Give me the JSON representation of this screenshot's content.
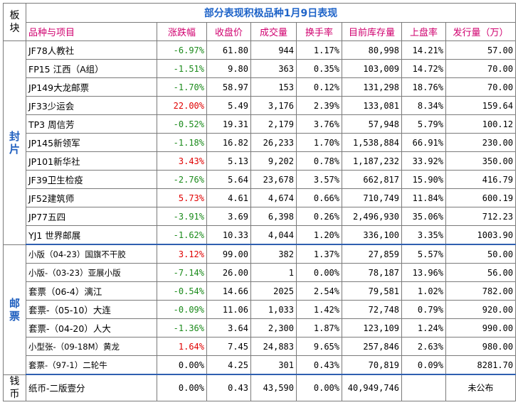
{
  "title": "部分表现积极品种1月9日表现",
  "corner_label": "板块",
  "columns": [
    "品种与项目",
    "涨跌幅",
    "收盘价",
    "成交量",
    "换手率",
    "目前库存量",
    "上盘率",
    "发行量（万）"
  ],
  "sections": [
    {
      "label": "封片",
      "rows": [
        {
          "name": "JF78人教社",
          "change": "-6.97%",
          "dir": "neg",
          "close": "61.80",
          "volume": "944",
          "turnover": "1.17%",
          "stock": "80,998",
          "up_rate": "14.21%",
          "issue": "57.00"
        },
        {
          "name": "FP15 江西（A组）",
          "change": "-1.51%",
          "dir": "neg",
          "close": "9.80",
          "volume": "363",
          "turnover": "0.35%",
          "stock": "103,009",
          "up_rate": "14.72%",
          "issue": "70.00"
        },
        {
          "name": "JP149大龙邮票",
          "change": "-1.70%",
          "dir": "neg",
          "close": "58.97",
          "volume": "153",
          "turnover": "0.12%",
          "stock": "131,298",
          "up_rate": "18.76%",
          "issue": "70.00"
        },
        {
          "name": "JF33少运会",
          "change": "22.00%",
          "dir": "pos",
          "close": "5.49",
          "volume": "3,176",
          "turnover": "2.39%",
          "stock": "133,081",
          "up_rate": "8.34%",
          "issue": "159.64"
        },
        {
          "name": "TP3 周信芳",
          "change": "-0.52%",
          "dir": "neg",
          "close": "19.31",
          "volume": "2,179",
          "turnover": "3.76%",
          "stock": "57,948",
          "up_rate": "5.79%",
          "issue": "100.12"
        },
        {
          "name": "JP145新领军",
          "change": "-1.18%",
          "dir": "neg",
          "close": "16.82",
          "volume": "26,233",
          "turnover": "1.70%",
          "stock": "1,538,884",
          "up_rate": "66.91%",
          "issue": "230.00"
        },
        {
          "name": "JP101新华社",
          "change": "3.43%",
          "dir": "pos",
          "close": "5.13",
          "volume": "9,202",
          "turnover": "0.78%",
          "stock": "1,187,232",
          "up_rate": "33.92%",
          "issue": "350.00"
        },
        {
          "name": "JF39卫生检疫",
          "change": "-2.76%",
          "dir": "neg",
          "close": "5.64",
          "volume": "23,678",
          "turnover": "3.57%",
          "stock": "662,817",
          "up_rate": "15.90%",
          "issue": "416.79"
        },
        {
          "name": "JF52建筑师",
          "change": "5.73%",
          "dir": "pos",
          "close": "4.61",
          "volume": "4,674",
          "turnover": "0.66%",
          "stock": "710,749",
          "up_rate": "11.84%",
          "issue": "600.19"
        },
        {
          "name": "JP77五四",
          "change": "-3.91%",
          "dir": "neg",
          "close": "3.69",
          "volume": "6,398",
          "turnover": "0.26%",
          "stock": "2,496,930",
          "up_rate": "35.06%",
          "issue": "712.23"
        },
        {
          "name": "YJ1 世界邮展",
          "change": "-1.62%",
          "dir": "neg",
          "close": "10.33",
          "volume": "4,044",
          "turnover": "1.20%",
          "stock": "336,100",
          "up_rate": "3.35%",
          "issue": "1003.90"
        }
      ]
    },
    {
      "label": "邮票",
      "rows": [
        {
          "name": "小版（04-23）国旗不干胶",
          "change": "3.12%",
          "dir": "pos",
          "close": "99.00",
          "volume": "382",
          "turnover": "1.37%",
          "stock": "27,859",
          "up_rate": "5.57%",
          "issue": "50.00",
          "small": true
        },
        {
          "name": "小版-（03-23）亚展小版",
          "change": "-7.14%",
          "dir": "neg",
          "close": "26.00",
          "volume": "1",
          "turnover": "0.00%",
          "stock": "78,187",
          "up_rate": "13.96%",
          "issue": "56.00",
          "small": true
        },
        {
          "name": "套票（06-4）漓江",
          "change": "-0.54%",
          "dir": "neg",
          "close": "14.66",
          "volume": "2025",
          "turnover": "2.54%",
          "stock": "79,581",
          "up_rate": "1.02%",
          "issue": "782.00"
        },
        {
          "name": "套票-（05-10）大连",
          "change": "-0.09%",
          "dir": "neg",
          "close": "11.06",
          "volume": "1,033",
          "turnover": "1.42%",
          "stock": "72,748",
          "up_rate": "0.79%",
          "issue": "920.00"
        },
        {
          "name": "套票-（04-20）人大",
          "change": "-1.36%",
          "dir": "neg",
          "close": "3.64",
          "volume": "2,300",
          "turnover": "1.87%",
          "stock": "123,109",
          "up_rate": "1.24%",
          "issue": "990.00"
        },
        {
          "name": "小型张-（09-18M）黄龙",
          "change": "1.64%",
          "dir": "pos",
          "close": "7.45",
          "volume": "24,883",
          "turnover": "9.65%",
          "stock": "257,846",
          "up_rate": "2.63%",
          "issue": "980.00",
          "small": true
        },
        {
          "name": "套票-（97-1）二轮牛",
          "change": "0.00%",
          "dir": "zero",
          "close": "4.25",
          "volume": "301",
          "turnover": "0.43%",
          "stock": "70,819",
          "up_rate": "0.09%",
          "issue": "8281.70",
          "small": true
        }
      ]
    },
    {
      "label": "钱币",
      "rows": [
        {
          "name": "纸币-二版壹分",
          "change": "0.00%",
          "dir": "zero",
          "close": "0.43",
          "volume": "43,590",
          "turnover": "0.00%",
          "stock": "40,949,746",
          "up_rate": "",
          "issue": "未公布",
          "issue_center": true
        }
      ]
    }
  ]
}
